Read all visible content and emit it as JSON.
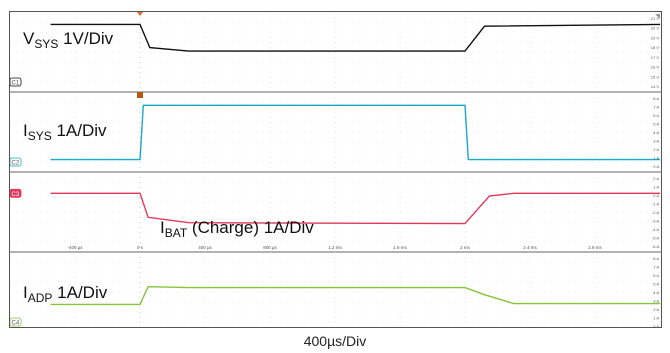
{
  "chart_data": {
    "type": "line",
    "time_per_div": "400µs/Div",
    "time_axis_labels": [
      "-400 µs",
      "0 s",
      "400 µs",
      "800 µs",
      "1.2 ms",
      "1.6 ms",
      "2 ms",
      "2.4 ms",
      "2.8 ms"
    ],
    "channels": [
      {
        "id": "C1",
        "label_main": "V",
        "label_sub": "SYS",
        "label_tail": " 1V/Div",
        "color": "#111111",
        "scale_labels": [
          "21 V",
          "20 V",
          "19 V",
          "18 V",
          "17 V",
          "16 V",
          "15 V",
          "14 V"
        ],
        "points_ms": [
          [
            -0.55,
            3.8
          ],
          [
            0,
            3.8
          ],
          [
            0.06,
            2.5
          ],
          [
            0.3,
            2.3
          ],
          [
            2.0,
            2.3
          ],
          [
            2.12,
            3.7
          ],
          [
            3.2,
            3.8
          ]
        ]
      },
      {
        "id": "C2",
        "label_main": "I",
        "label_sub": "SYS",
        "label_tail": " 1A/Div",
        "color": "#1aa8cc",
        "scale_labels": [
          "8 A",
          "7 A",
          "6 A",
          "5 A",
          "4 A",
          "3 A",
          "2 A",
          "1 A",
          "0 A"
        ],
        "points_ms": [
          [
            -0.55,
            1.4
          ],
          [
            0,
            1.4
          ],
          [
            0.02,
            7.5
          ],
          [
            2.0,
            7.5
          ],
          [
            2.02,
            1.4
          ],
          [
            3.2,
            1.4
          ]
        ]
      },
      {
        "id": "C3",
        "label_main": "I",
        "label_sub": "BAT",
        "label_tail": " (Charge) 1A/Div",
        "color": "#e0385a",
        "scale_labels": [
          "2 A",
          "1 A",
          "0 A",
          "-1 A",
          "-2 A",
          "-3 A",
          "-4 A",
          "-5 A",
          "-6 A"
        ],
        "points_ms": [
          [
            -0.55,
            0.1
          ],
          [
            0,
            0.1
          ],
          [
            0.05,
            -2.6
          ],
          [
            0.3,
            -3.2
          ],
          [
            2.0,
            -3.3
          ],
          [
            2.15,
            -0.2
          ],
          [
            2.3,
            0.1
          ],
          [
            3.2,
            0.1
          ]
        ]
      },
      {
        "id": "C4",
        "label_main": "I",
        "label_sub": "ADP",
        "label_tail": " 1A/Div",
        "color": "#88c43a",
        "scale_labels": [
          "8 A",
          "7 A",
          "6 A",
          "5 A",
          "4 A",
          "3 A",
          "2 A",
          "1 A",
          "0 A"
        ],
        "points_ms": [
          [
            -0.55,
            3.1
          ],
          [
            0,
            3.1
          ],
          [
            0.05,
            5.1
          ],
          [
            0.3,
            5.0
          ],
          [
            2.0,
            5.0
          ],
          [
            2.12,
            4.2
          ],
          [
            2.3,
            3.2
          ],
          [
            3.2,
            3.2
          ]
        ]
      }
    ]
  }
}
